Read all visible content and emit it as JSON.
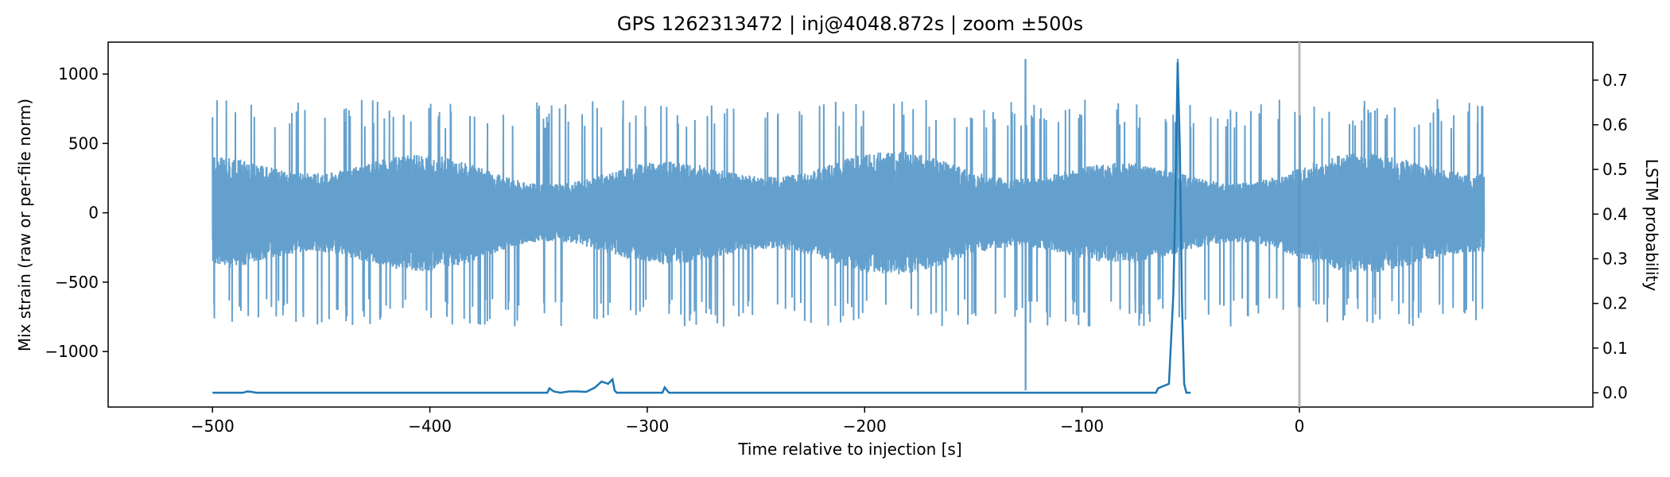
{
  "chart_data": {
    "type": "line",
    "title": "GPS 1262313472 | inj@4048.872s | zoom ±500s",
    "xlabel": "Time relative to injection [s]",
    "ylabel": "Mix strain (raw or per-file norm)",
    "y2label": "LSTM probability",
    "xlim": [
      -548,
      135
    ],
    "ylim": [
      -1400,
      1230
    ],
    "y2lim": [
      -0.032,
      0.785
    ],
    "grid": false,
    "x_ticks": [
      -500,
      -400,
      -300,
      -200,
      -100,
      0
    ],
    "x_tick_labels": [
      "−500",
      "−400",
      "−300",
      "−200",
      "−100",
      "0"
    ],
    "y_ticks": [
      -1000,
      -500,
      0,
      500,
      1000
    ],
    "y_tick_labels": [
      "−1000",
      "−500",
      "0",
      "500",
      "1000"
    ],
    "y2_ticks": [
      0.0,
      0.1,
      0.2,
      0.3,
      0.4,
      0.5,
      0.6,
      0.7
    ],
    "y2_tick_labels": [
      "0.0",
      "0.1",
      "0.2",
      "0.3",
      "0.4",
      "0.5",
      "0.6",
      "0.7"
    ],
    "reference_line_x": 0,
    "series": [
      {
        "color": "#4f93c6",
        "x_range": [
          -500,
          85
        ],
        "approx_envelope": {
          "typical_amplitude": 450,
          "peak_amplitude": 820
        },
        "spikes": [
          {
            "x": -126,
            "ymin": -1280,
            "ymax": 1110
          },
          {
            "x": -56,
            "ymin": -80,
            "ymax": 1110
          }
        ]
      },
      {
        "color": "#1f77b4",
        "x": [
          -500,
          -486,
          -484,
          -482,
          -480,
          -360,
          -346,
          -345,
          -343,
          -340,
          -336,
          -332,
          -328,
          -324,
          -321,
          -318,
          -316,
          -315,
          -314,
          -300,
          -293,
          -292,
          -290,
          -160,
          -66,
          -65,
          -60,
          -58,
          -57,
          -56,
          -55,
          -54,
          -53,
          -52,
          -50
        ],
        "y": [
          0.0,
          0.0,
          0.003,
          0.002,
          0.0,
          0.0,
          0.0,
          0.01,
          0.003,
          0.0,
          0.003,
          0.003,
          0.002,
          0.012,
          0.025,
          0.02,
          0.03,
          0.005,
          0.0,
          0.0,
          0.0,
          0.012,
          0.0,
          0.0,
          0.0,
          0.01,
          0.02,
          0.22,
          0.45,
          0.74,
          0.55,
          0.2,
          0.02,
          0.0,
          0.0
        ]
      }
    ]
  }
}
